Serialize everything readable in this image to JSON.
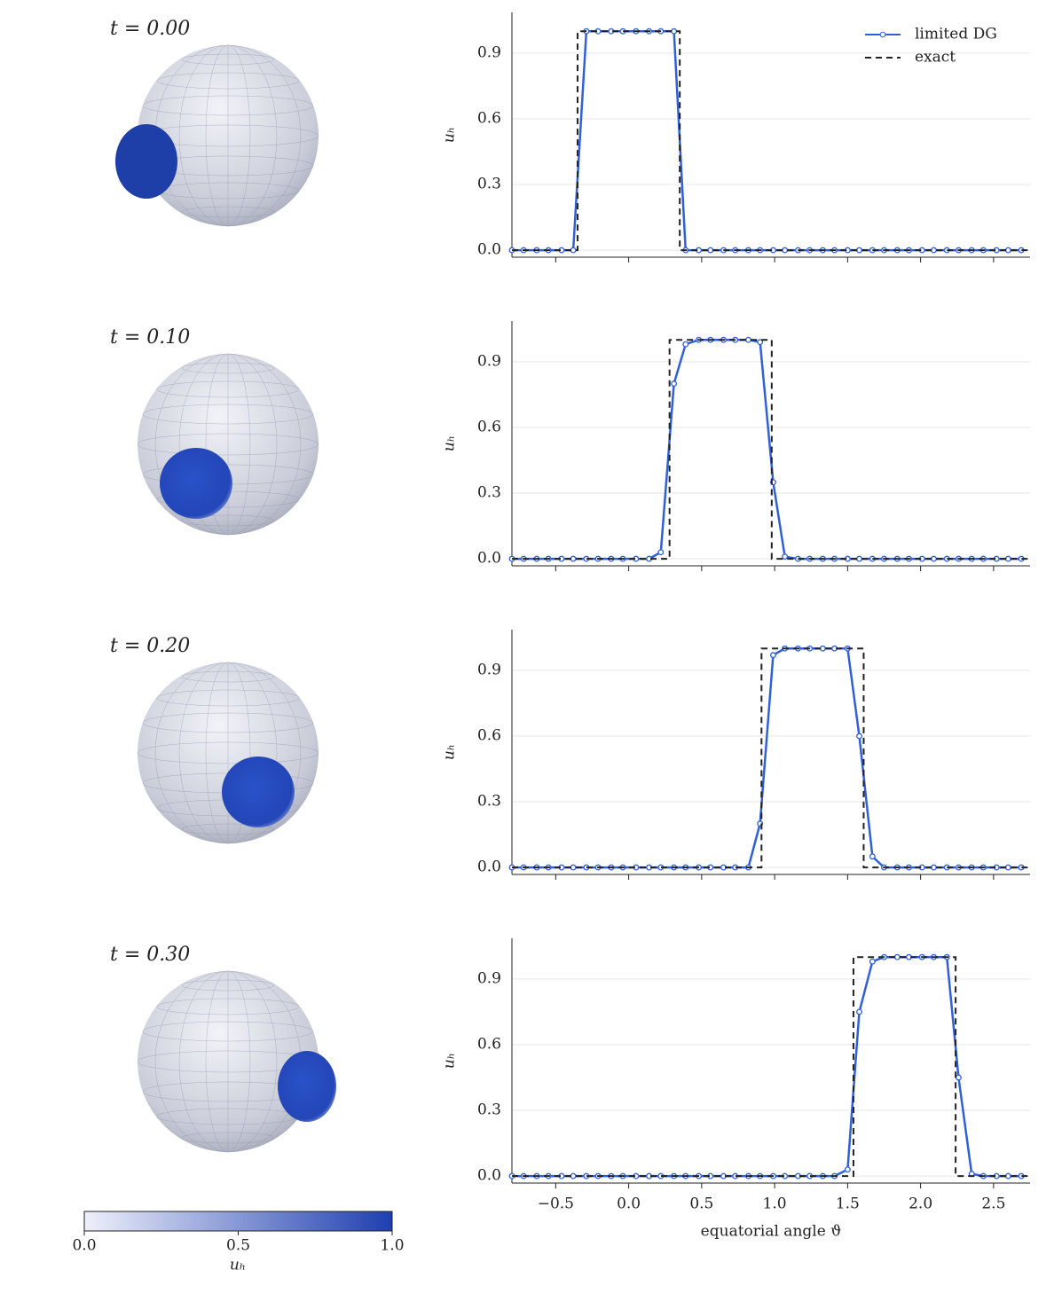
{
  "panels": [
    {
      "label": "t = 0.00"
    },
    {
      "label": "t = 0.10"
    },
    {
      "label": "t = 0.20"
    },
    {
      "label": "t = 0.30"
    }
  ],
  "colorbar": {
    "label": "uₕ",
    "lim": [
      0,
      1
    ],
    "colors": [
      "#eef0fa",
      "#1f3fb0"
    ],
    "ticks": [
      {
        "value": 0,
        "label": "0.0"
      },
      0.5,
      {
        "value": 1,
        "label": "1.0"
      }
    ]
  },
  "chart_data": [
    {
      "type": "line",
      "ylabel": "uₕ",
      "legend": "upper right",
      "grid": true,
      "xlim": [
        -0.8,
        2.75
      ],
      "ylim": [
        -0.032,
        1.086
      ],
      "xticks": [
        -0.5,
        0,
        0.5,
        1,
        1.5,
        2,
        2.5
      ],
      "yticks": [
        {
          "value": 0,
          "label": "0.0"
        },
        0.3,
        0.6,
        0.9
      ],
      "x": [
        -0.8,
        -0.72,
        -0.63,
        -0.55,
        -0.46,
        -0.38,
        -0.29,
        -0.21,
        -0.12,
        -0.04,
        0.05,
        0.14,
        0.22,
        0.31,
        0.39,
        0.48,
        0.56,
        0.65,
        0.73,
        0.82,
        0.9,
        0.99,
        1.07,
        1.16,
        1.24,
        1.33,
        1.41,
        1.5,
        1.58,
        1.67,
        1.75,
        1.84,
        1.92,
        2.01,
        2.09,
        2.18,
        2.26,
        2.35,
        2.43,
        2.52,
        2.6,
        2.69
      ],
      "series": [
        {
          "name": "limited DG",
          "color": "#3060d8",
          "markers": true,
          "values": [
            0,
            0,
            0,
            0,
            0,
            0,
            1,
            1,
            1,
            1,
            1,
            1,
            1,
            1,
            0,
            0,
            0,
            0,
            0,
            0,
            0,
            0,
            0,
            0,
            0,
            0,
            0,
            0,
            0,
            0,
            0,
            0,
            0,
            0,
            0,
            0,
            0,
            0,
            0,
            0,
            0,
            0
          ]
        },
        {
          "name": "exact",
          "color": "#222222",
          "dashed": true,
          "x": [
            -0.8,
            -0.35,
            -0.35,
            0.35,
            0.35,
            2.75
          ],
          "values": [
            0,
            0,
            1,
            1,
            0,
            0
          ]
        }
      ]
    },
    {
      "type": "line",
      "ylabel": "uₕ",
      "grid": true,
      "xlim": [
        -0.8,
        2.75
      ],
      "ylim": [
        -0.032,
        1.086
      ],
      "xticks": [
        -0.5,
        0,
        0.5,
        1,
        1.5,
        2,
        2.5
      ],
      "yticks": [
        {
          "value": 0,
          "label": "0.0"
        },
        0.3,
        0.6,
        0.9
      ],
      "x": [
        -0.8,
        -0.72,
        -0.63,
        -0.55,
        -0.46,
        -0.38,
        -0.29,
        -0.21,
        -0.12,
        -0.04,
        0.05,
        0.14,
        0.22,
        0.31,
        0.39,
        0.48,
        0.56,
        0.65,
        0.73,
        0.82,
        0.9,
        0.99,
        1.07,
        1.16,
        1.24,
        1.33,
        1.41,
        1.5,
        1.58,
        1.67,
        1.75,
        1.84,
        1.92,
        2.01,
        2.09,
        2.18,
        2.26,
        2.35,
        2.43,
        2.52,
        2.6,
        2.69
      ],
      "series": [
        {
          "name": "limited DG",
          "color": "#3060d8",
          "markers": true,
          "values": [
            0,
            0,
            0,
            0,
            0,
            0,
            0,
            0,
            0,
            0,
            0,
            0,
            0.03,
            0.8,
            0.98,
            1,
            1,
            1,
            1,
            1,
            0.99,
            0.35,
            0.01,
            0,
            0,
            0,
            0,
            0,
            0,
            0,
            0,
            0,
            0,
            0,
            0,
            0,
            0,
            0,
            0,
            0,
            0,
            0
          ]
        },
        {
          "name": "exact",
          "color": "#222222",
          "dashed": true,
          "x": [
            -0.8,
            0.28,
            0.28,
            0.98,
            0.98,
            2.75
          ],
          "values": [
            0,
            0,
            1,
            1,
            0,
            0
          ]
        }
      ]
    },
    {
      "type": "line",
      "ylabel": "uₕ",
      "grid": true,
      "xlim": [
        -0.8,
        2.75
      ],
      "ylim": [
        -0.032,
        1.086
      ],
      "xticks": [
        -0.5,
        0,
        0.5,
        1,
        1.5,
        2,
        2.5
      ],
      "yticks": [
        {
          "value": 0,
          "label": "0.0"
        },
        0.3,
        0.6,
        0.9
      ],
      "x": [
        -0.8,
        -0.72,
        -0.63,
        -0.55,
        -0.46,
        -0.38,
        -0.29,
        -0.21,
        -0.12,
        -0.04,
        0.05,
        0.14,
        0.22,
        0.31,
        0.39,
        0.48,
        0.56,
        0.65,
        0.73,
        0.82,
        0.9,
        0.99,
        1.07,
        1.16,
        1.24,
        1.33,
        1.41,
        1.5,
        1.58,
        1.67,
        1.75,
        1.84,
        1.92,
        2.01,
        2.09,
        2.18,
        2.26,
        2.35,
        2.43,
        2.52,
        2.6,
        2.69
      ],
      "series": [
        {
          "name": "limited DG",
          "color": "#3060d8",
          "markers": true,
          "values": [
            0,
            0,
            0,
            0,
            0,
            0,
            0,
            0,
            0,
            0,
            0,
            0,
            0,
            0,
            0,
            0,
            0,
            0,
            0,
            0,
            0.2,
            0.97,
            1,
            1,
            1,
            1,
            1,
            1,
            0.6,
            0.05,
            0,
            0,
            0,
            0,
            0,
            0,
            0,
            0,
            0,
            0,
            0,
            0
          ]
        },
        {
          "name": "exact",
          "color": "#222222",
          "dashed": true,
          "x": [
            -0.8,
            0.91,
            0.91,
            1.61,
            1.61,
            2.75
          ],
          "values": [
            0,
            0,
            1,
            1,
            0,
            0
          ]
        }
      ]
    },
    {
      "type": "line",
      "ylabel": "uₕ",
      "xlabel": "equatorial angle ϑ",
      "grid": true,
      "xlim": [
        -0.8,
        2.75
      ],
      "ylim": [
        -0.032,
        1.086
      ],
      "xticks": [
        {
          "value": -0.5,
          "label": "−0.5"
        },
        {
          "value": 0,
          "label": "0.0"
        },
        0.5,
        {
          "value": 1,
          "label": "1.0"
        },
        1.5,
        {
          "value": 2,
          "label": "2.0"
        },
        2.5
      ],
      "yticks": [
        {
          "value": 0,
          "label": "0.0"
        },
        0.3,
        0.6,
        0.9
      ],
      "x": [
        -0.8,
        -0.72,
        -0.63,
        -0.55,
        -0.46,
        -0.38,
        -0.29,
        -0.21,
        -0.12,
        -0.04,
        0.05,
        0.14,
        0.22,
        0.31,
        0.39,
        0.48,
        0.56,
        0.65,
        0.73,
        0.82,
        0.9,
        0.99,
        1.07,
        1.16,
        1.24,
        1.33,
        1.41,
        1.5,
        1.58,
        1.67,
        1.75,
        1.84,
        1.92,
        2.01,
        2.09,
        2.18,
        2.26,
        2.35,
        2.43,
        2.52,
        2.6,
        2.69
      ],
      "series": [
        {
          "name": "limited DG",
          "color": "#3060d8",
          "markers": true,
          "values": [
            0,
            0,
            0,
            0,
            0,
            0,
            0,
            0,
            0,
            0,
            0,
            0,
            0,
            0,
            0,
            0,
            0,
            0,
            0,
            0,
            0,
            0,
            0,
            0,
            0,
            0,
            0,
            0.03,
            0.75,
            0.98,
            1,
            1,
            1,
            1,
            1,
            1,
            0.45,
            0.01,
            0,
            0,
            0,
            0
          ]
        },
        {
          "name": "exact",
          "color": "#222222",
          "dashed": true,
          "x": [
            -0.8,
            1.54,
            1.54,
            2.24,
            2.24,
            2.75
          ],
          "values": [
            0,
            0,
            1,
            1,
            0,
            0
          ]
        }
      ]
    }
  ]
}
